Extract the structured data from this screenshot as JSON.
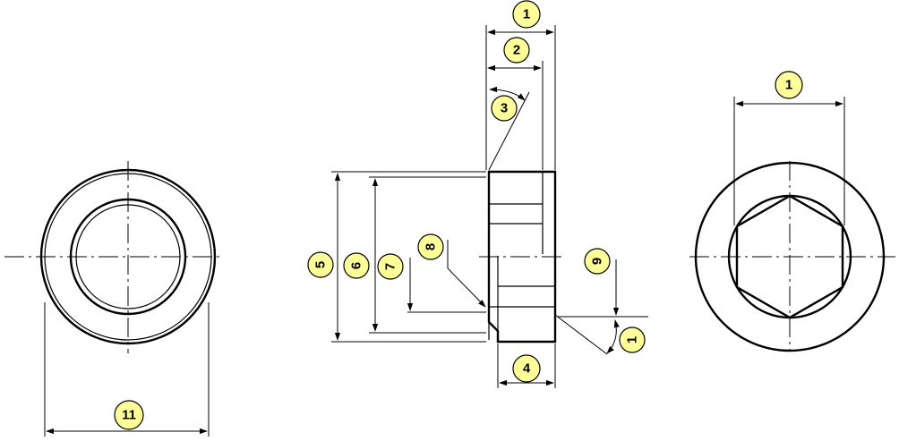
{
  "callouts": {
    "c1_top": "1",
    "c2": "2",
    "c3": "3",
    "c4": "4",
    "c5": "5",
    "c6": "6",
    "c7": "7",
    "c8": "8",
    "c9": "9",
    "c1_side": "1",
    "c1_right": "1",
    "c11": "11"
  },
  "colors": {
    "badge_fill": "#ffff99",
    "line": "#000000"
  }
}
